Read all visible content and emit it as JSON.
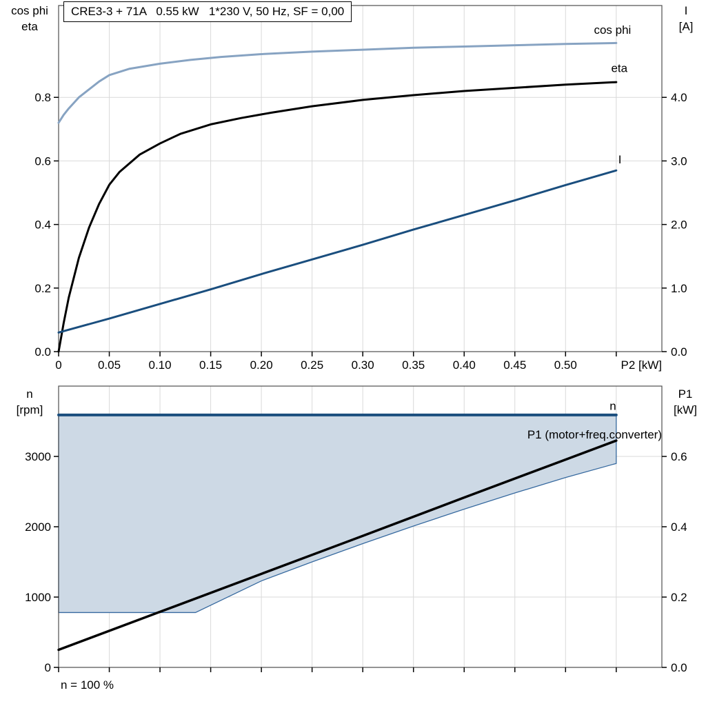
{
  "header": {
    "title_box": "CRE3-3 + 71A   0.55 kW   1*230 V, 50 Hz, SF = 0,00"
  },
  "footer": {
    "note": "n = 100 %"
  },
  "colors": {
    "cos_phi": "#87a3c2",
    "eta": "#000000",
    "current": "#1a4e7e",
    "speed": "#1a4e7e",
    "p1": "#000000",
    "region_fill": "#cdd9e5",
    "region_edge": "#36699f",
    "grid": "#d9d9d9",
    "frame": "#4d4d4d"
  },
  "chart_data": [
    {
      "type": "line",
      "name": "motor-performance",
      "x_axis": {
        "label": "P2 [kW]",
        "min": 0,
        "max": 0.595,
        "ticks": [
          0,
          0.05,
          0.1,
          0.15,
          0.2,
          0.25,
          0.3,
          0.35,
          0.4,
          0.45,
          0.5,
          0.55
        ],
        "tick_labels": [
          "0",
          "0.05",
          "0.10",
          "0.15",
          "0.20",
          "0.25",
          "0.30",
          "0.35",
          "0.40",
          "0.45",
          "0.50",
          ""
        ],
        "grid_ticks": [
          0.05,
          0.1,
          0.15,
          0.2,
          0.25,
          0.3,
          0.35,
          0.4,
          0.45,
          0.5,
          0.55
        ]
      },
      "y_left": {
        "label_lines": [
          "cos phi",
          "eta"
        ],
        "min": 0,
        "max": 1.089,
        "ticks": [
          0,
          0.2,
          0.4,
          0.6,
          0.8
        ],
        "tick_labels": [
          "0.0",
          "0.2",
          "0.4",
          "0.6",
          "0.8"
        ],
        "grid_ticks": [
          0.2,
          0.4,
          0.6,
          0.8
        ]
      },
      "y_right": {
        "label_lines": [
          "I",
          "[A]"
        ],
        "min": 0,
        "max": 5.445,
        "ticks": [
          0,
          1,
          2,
          3,
          4
        ],
        "tick_labels": [
          "0.0",
          "1.0",
          "2.0",
          "3.0",
          "4.0"
        ]
      },
      "series": [
        {
          "name": "cos phi",
          "axis": "left",
          "color_key": "cos_phi",
          "width": 3,
          "x": [
            0,
            0.005,
            0.01,
            0.02,
            0.03,
            0.04,
            0.05,
            0.07,
            0.1,
            0.13,
            0.16,
            0.2,
            0.25,
            0.3,
            0.35,
            0.4,
            0.45,
            0.5,
            0.55
          ],
          "y": [
            0.72,
            0.745,
            0.765,
            0.8,
            0.825,
            0.85,
            0.87,
            0.89,
            0.906,
            0.918,
            0.927,
            0.936,
            0.944,
            0.95,
            0.956,
            0.96,
            0.964,
            0.968,
            0.971
          ],
          "label": {
            "text": "cos phi",
            "x": 0.528,
            "y": 1.0,
            "anchor": "start"
          }
        },
        {
          "name": "eta",
          "axis": "left",
          "color_key": "eta",
          "width": 3,
          "x": [
            0,
            0.005,
            0.01,
            0.02,
            0.03,
            0.04,
            0.05,
            0.06,
            0.08,
            0.1,
            0.12,
            0.15,
            0.18,
            0.21,
            0.25,
            0.3,
            0.35,
            0.4,
            0.45,
            0.5,
            0.55
          ],
          "y": [
            0,
            0.09,
            0.17,
            0.295,
            0.39,
            0.465,
            0.525,
            0.565,
            0.62,
            0.655,
            0.685,
            0.715,
            0.735,
            0.752,
            0.772,
            0.792,
            0.807,
            0.82,
            0.83,
            0.84,
            0.848
          ],
          "label": {
            "text": "eta",
            "x": 0.545,
            "y": 0.88,
            "anchor": "start"
          }
        },
        {
          "name": "I",
          "axis": "right",
          "color_key": "current",
          "width": 3,
          "x": [
            0,
            0.05,
            0.1,
            0.15,
            0.2,
            0.25,
            0.3,
            0.35,
            0.4,
            0.45,
            0.5,
            0.55
          ],
          "y": [
            0.3,
            0.52,
            0.75,
            0.98,
            1.22,
            1.45,
            1.68,
            1.92,
            2.15,
            2.38,
            2.62,
            2.85
          ],
          "label": {
            "text": "I",
            "x": 0.552,
            "y": 2.96,
            "anchor": "start"
          }
        }
      ]
    },
    {
      "type": "line",
      "name": "speed-and-input-power",
      "x_axis": {
        "label": "",
        "min": 0,
        "max": 0.595,
        "ticks": [
          0,
          0.05,
          0.1,
          0.15,
          0.2,
          0.25,
          0.3,
          0.35,
          0.4,
          0.45,
          0.5,
          0.55
        ],
        "tick_labels": [
          "",
          "",
          "",
          "",
          "",
          "",
          "",
          "",
          "",
          "",
          "",
          ""
        ],
        "grid_ticks": [
          0.05,
          0.1,
          0.15,
          0.2,
          0.25,
          0.3,
          0.35,
          0.4,
          0.45,
          0.5,
          0.55
        ]
      },
      "y_left": {
        "label_lines": [
          "n",
          "[rpm]"
        ],
        "min": 0,
        "max": 4000,
        "ticks": [
          0,
          1000,
          2000,
          3000
        ],
        "tick_labels": [
          "0",
          "1000",
          "2000",
          "3000"
        ],
        "grid_ticks": [
          1000,
          2000,
          3000
        ]
      },
      "y_right": {
        "label_lines": [
          "P1",
          "[kW]"
        ],
        "min": 0,
        "max": 0.8,
        "ticks": [
          0,
          0.2,
          0.4,
          0.6
        ],
        "tick_labels": [
          "0.0",
          "0.2",
          "0.4",
          "0.6"
        ]
      },
      "region": {
        "name": "speed-control-range",
        "upper": {
          "x": [
            0,
            0.55
          ],
          "y": [
            3590,
            3590
          ]
        },
        "lower": {
          "x": [
            0,
            0.135,
            0.2,
            0.25,
            0.3,
            0.35,
            0.4,
            0.45,
            0.5,
            0.55
          ],
          "y": [
            780,
            780,
            1230,
            1500,
            1760,
            2010,
            2250,
            2480,
            2700,
            2900
          ]
        }
      },
      "series": [
        {
          "name": "n",
          "axis": "left",
          "color_key": "speed",
          "width": 4,
          "x": [
            0,
            0.55
          ],
          "y": [
            3590,
            3590
          ],
          "label": {
            "text": "n",
            "x": 0.5435,
            "y": 3660,
            "anchor": "start"
          }
        },
        {
          "name": "P1 (motor+freq.converter)",
          "axis": "right",
          "color_key": "p1",
          "width": 3.5,
          "x": [
            0,
            0.1,
            0.2,
            0.3,
            0.4,
            0.5,
            0.55
          ],
          "y": [
            0.05,
            0.158,
            0.266,
            0.374,
            0.483,
            0.591,
            0.645
          ],
          "label": {
            "text": "P1 (motor+freq.converter)",
            "x": 0.595,
            "y": 0.651,
            "anchor": "end"
          }
        }
      ]
    }
  ]
}
